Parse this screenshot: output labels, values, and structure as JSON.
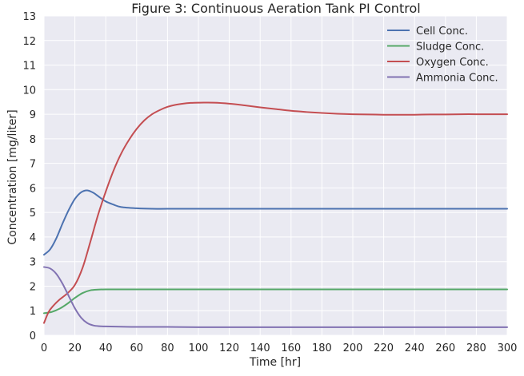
{
  "chart_data": {
    "type": "line",
    "title": "Figure 3: Continuous Aeration Tank PI Control",
    "xlabel": "Time [hr]",
    "ylabel": "Concentration [mg/liter]",
    "xlim": [
      0,
      300
    ],
    "ylim": [
      0,
      13
    ],
    "xticks": [
      0,
      20,
      40,
      60,
      80,
      100,
      120,
      140,
      160,
      180,
      200,
      220,
      240,
      260,
      280,
      300
    ],
    "yticks": [
      0,
      1,
      2,
      3,
      4,
      5,
      6,
      7,
      8,
      9,
      10,
      11,
      12,
      13
    ],
    "grid": true,
    "legend_position": "top-right",
    "background": "#eaeaf2",
    "series": [
      {
        "name": "Cell Conc.",
        "color": "#4c72b0",
        "x": [
          0,
          4,
          8,
          12,
          16,
          20,
          24,
          28,
          32,
          36,
          40,
          45,
          50,
          60,
          70,
          80,
          100,
          150,
          200,
          250,
          300
        ],
        "y": [
          3.28,
          3.5,
          3.95,
          4.55,
          5.1,
          5.55,
          5.82,
          5.9,
          5.8,
          5.62,
          5.45,
          5.32,
          5.22,
          5.17,
          5.15,
          5.15,
          5.15,
          5.15,
          5.15,
          5.15,
          5.15
        ]
      },
      {
        "name": "Sludge Conc.",
        "color": "#55a868",
        "x": [
          0,
          5,
          10,
          15,
          20,
          25,
          30,
          35,
          40,
          50,
          60,
          100,
          150,
          200,
          250,
          300
        ],
        "y": [
          0.9,
          0.95,
          1.08,
          1.28,
          1.52,
          1.72,
          1.83,
          1.86,
          1.87,
          1.87,
          1.87,
          1.87,
          1.87,
          1.87,
          1.87,
          1.87
        ]
      },
      {
        "name": "Oxygen Conc.",
        "color": "#c44e52",
        "x": [
          0,
          3,
          6,
          10,
          15,
          20,
          25,
          30,
          35,
          40,
          45,
          50,
          55,
          60,
          65,
          70,
          75,
          80,
          85,
          90,
          95,
          100,
          110,
          120,
          130,
          140,
          150,
          160,
          170,
          180,
          190,
          200,
          210,
          220,
          230,
          240,
          250,
          260,
          270,
          280,
          290,
          300
        ],
        "y": [
          0.5,
          0.95,
          1.2,
          1.45,
          1.7,
          2.05,
          2.75,
          3.8,
          4.9,
          5.85,
          6.7,
          7.4,
          7.95,
          8.4,
          8.75,
          9.0,
          9.17,
          9.3,
          9.38,
          9.43,
          9.46,
          9.47,
          9.47,
          9.43,
          9.36,
          9.28,
          9.21,
          9.14,
          9.09,
          9.05,
          9.02,
          9.0,
          8.99,
          8.98,
          8.98,
          8.98,
          8.99,
          8.99,
          9.0,
          9.0,
          9.0,
          9.0
        ]
      },
      {
        "name": "Ammonia Conc.",
        "color": "#8172b2",
        "x": [
          0,
          4,
          8,
          12,
          16,
          20,
          24,
          28,
          32,
          36,
          40,
          50,
          60,
          80,
          100,
          150,
          200,
          250,
          300
        ],
        "y": [
          2.78,
          2.72,
          2.5,
          2.1,
          1.6,
          1.1,
          0.72,
          0.5,
          0.4,
          0.37,
          0.36,
          0.35,
          0.34,
          0.34,
          0.33,
          0.33,
          0.33,
          0.33,
          0.33
        ]
      }
    ]
  }
}
